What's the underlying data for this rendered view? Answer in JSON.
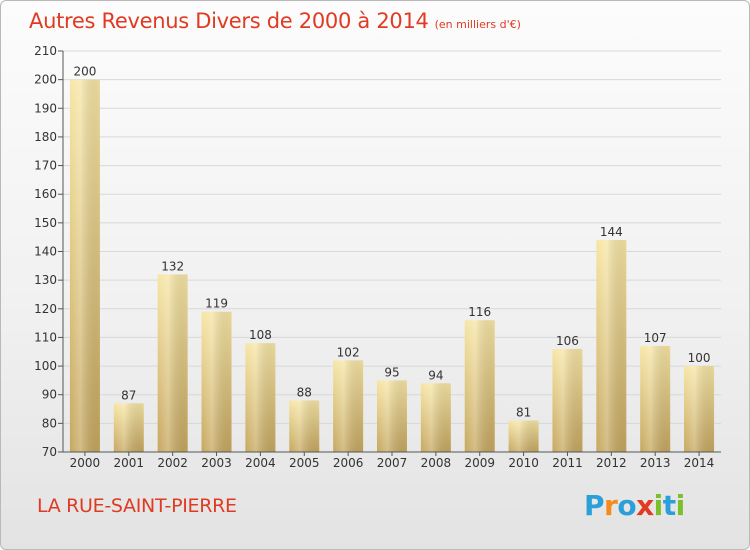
{
  "title": "Autres Revenus Divers de 2000 à 2014",
  "subtitle": "(en milliers d'€)",
  "commune": "LA RUE-SAINT-PIERRE",
  "logo": {
    "text": "Proxiti",
    "letters": [
      {
        "ch": "P",
        "color": "#2a9fd8"
      },
      {
        "ch": "r",
        "color": "#f28c1c"
      },
      {
        "ch": "o",
        "color": "#2a9fd8"
      },
      {
        "ch": "x",
        "color": "#e03a22"
      },
      {
        "ch": "i",
        "color": "#7bbf2a"
      },
      {
        "ch": "t",
        "color": "#2a9fd8"
      },
      {
        "ch": "i",
        "color": "#7bbf2a"
      }
    ]
  },
  "colors": {
    "title": "#e03a22",
    "bar_top": "#f7e6a5",
    "bar_bottom": "#c6a75f",
    "grid": "#d8d8d8",
    "axis": "#555555",
    "label": "#333333"
  },
  "chart_data": {
    "type": "bar",
    "categories": [
      "2000",
      "2001",
      "2002",
      "2003",
      "2004",
      "2005",
      "2006",
      "2007",
      "2008",
      "2009",
      "2010",
      "2011",
      "2012",
      "2013",
      "2014"
    ],
    "values": [
      200,
      87,
      132,
      119,
      108,
      88,
      102,
      95,
      94,
      116,
      81,
      106,
      144,
      107,
      100
    ],
    "ylim": [
      70,
      210
    ],
    "yticks": [
      70,
      80,
      90,
      100,
      110,
      120,
      130,
      140,
      150,
      160,
      170,
      180,
      190,
      200,
      210
    ],
    "grid": true,
    "data_labels": true
  }
}
